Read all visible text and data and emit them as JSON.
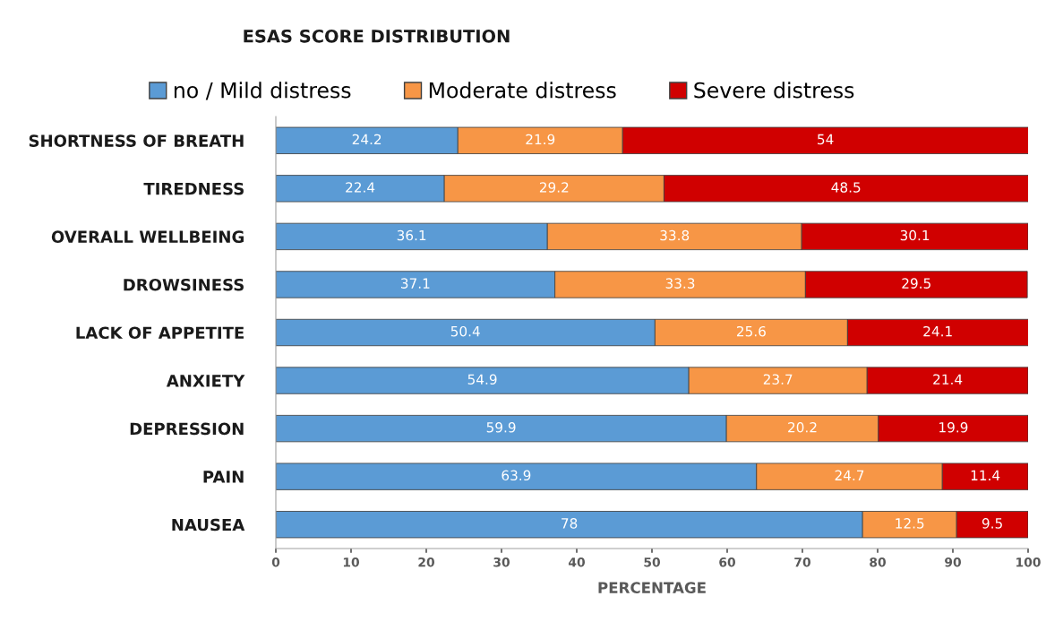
{
  "chart_data": {
    "type": "bar",
    "orientation": "horizontal",
    "stacked": true,
    "title": "ESAS SCORE DISTRIBUTION",
    "xlabel": "PERCENTAGE",
    "categories": [
      "SHORTNESS OF BREATH",
      "TIREDNESS",
      "OVERALL WELLBEING",
      "DROWSINESS",
      "LACK OF APPETITE",
      "ANXIETY",
      "DEPRESSION",
      "PAIN",
      "NAUSEA"
    ],
    "series": [
      {
        "name": "no / Mild distress",
        "color": "#5b9bd5",
        "values": [
          24.2,
          22.4,
          36.1,
          37.1,
          50.4,
          54.9,
          59.9,
          63.9,
          78
        ]
      },
      {
        "name": "Moderate distress",
        "color": "#f79646",
        "values": [
          21.9,
          29.2,
          33.8,
          33.3,
          25.6,
          23.7,
          20.2,
          24.7,
          12.5
        ]
      },
      {
        "name": "Severe distress",
        "color": "#d00000",
        "values": [
          54,
          48.5,
          30.1,
          29.5,
          24.1,
          21.4,
          19.9,
          11.4,
          9.5
        ]
      }
    ],
    "xlim": [
      0,
      100
    ],
    "xticks": [
      0,
      10,
      20,
      30,
      40,
      50,
      60,
      70,
      80,
      90,
      100
    ],
    "data_labels": true,
    "grid": false,
    "legend": "top"
  }
}
